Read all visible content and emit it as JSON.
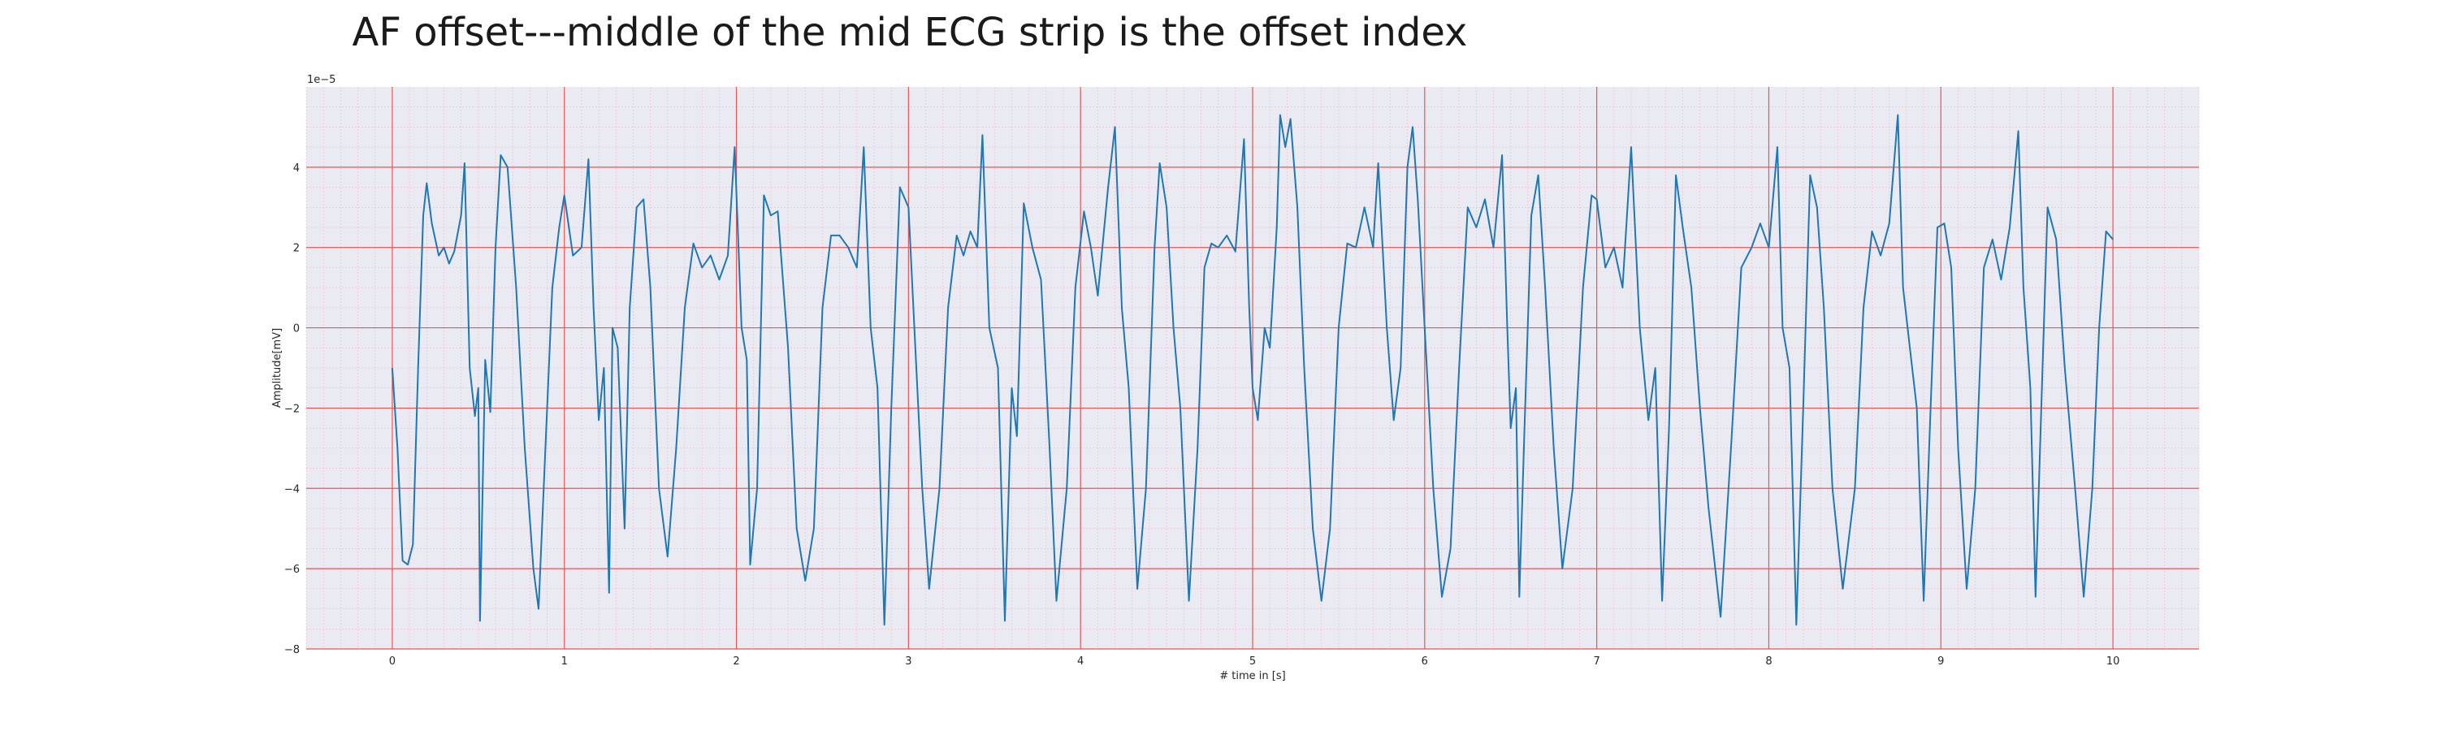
{
  "chart_data": {
    "type": "line",
    "title": "AF offset---middle of the mid ECG strip is the offset index",
    "xlabel": "# time in [s]",
    "ylabel": "Amplitude[mV]",
    "y_offset_text": "1e−5",
    "xlim": [
      -0.5,
      10.5
    ],
    "ylim": [
      -8.0,
      6.0
    ],
    "y_unit_scale": 1e-05,
    "x_ticks": [
      0,
      1,
      2,
      3,
      4,
      5,
      6,
      7,
      8,
      9,
      10
    ],
    "x_tick_labels": [
      "0",
      "1",
      "2",
      "3",
      "4",
      "5",
      "6",
      "7",
      "8",
      "9",
      "10"
    ],
    "y_ticks": [
      -8,
      -6,
      -4,
      -2,
      0,
      2,
      4
    ],
    "y_tick_labels": [
      "−8",
      "−6",
      "−4",
      "−2",
      "0",
      "2",
      "4"
    ],
    "grid": true,
    "minor_grid": true,
    "colors": {
      "plot_background": "#eaeaf2",
      "major_grid": "#ef5350",
      "minor_grid": "#f3b8c6",
      "line": "#1f77b4"
    },
    "series": [
      {
        "points": [
          [
            0.0,
            -1.0
          ],
          [
            0.03,
            -3.0
          ],
          [
            0.06,
            -5.8
          ],
          [
            0.09,
            -5.9
          ],
          [
            0.12,
            -5.4
          ],
          [
            0.15,
            -1.0
          ],
          [
            0.18,
            2.8
          ],
          [
            0.2,
            3.6
          ],
          [
            0.23,
            2.6
          ],
          [
            0.27,
            1.8
          ],
          [
            0.3,
            2.0
          ],
          [
            0.33,
            1.6
          ],
          [
            0.36,
            1.9
          ],
          [
            0.4,
            2.8
          ],
          [
            0.42,
            4.1
          ],
          [
            0.45,
            -1.0
          ],
          [
            0.48,
            -2.2
          ],
          [
            0.5,
            -1.5
          ],
          [
            0.51,
            -7.3
          ],
          [
            0.54,
            -0.8
          ],
          [
            0.57,
            -2.1
          ],
          [
            0.6,
            2.0
          ],
          [
            0.63,
            4.3
          ],
          [
            0.67,
            4.0
          ],
          [
            0.72,
            1.0
          ],
          [
            0.77,
            -3.0
          ],
          [
            0.82,
            -6.0
          ],
          [
            0.85,
            -7.0
          ],
          [
            0.89,
            -3.0
          ],
          [
            0.93,
            1.0
          ],
          [
            0.97,
            2.5
          ],
          [
            1.0,
            3.3
          ],
          [
            1.05,
            1.8
          ],
          [
            1.1,
            2.0
          ],
          [
            1.14,
            4.2
          ],
          [
            1.17,
            0.5
          ],
          [
            1.2,
            -2.3
          ],
          [
            1.23,
            -1.0
          ],
          [
            1.26,
            -6.6
          ],
          [
            1.28,
            0.0
          ],
          [
            1.31,
            -0.5
          ],
          [
            1.35,
            -5.0
          ],
          [
            1.38,
            0.5
          ],
          [
            1.42,
            3.0
          ],
          [
            1.46,
            3.2
          ],
          [
            1.5,
            1.0
          ],
          [
            1.55,
            -4.0
          ],
          [
            1.6,
            -5.7
          ],
          [
            1.65,
            -3.0
          ],
          [
            1.7,
            0.5
          ],
          [
            1.75,
            2.1
          ],
          [
            1.8,
            1.5
          ],
          [
            1.85,
            1.8
          ],
          [
            1.9,
            1.2
          ],
          [
            1.95,
            1.8
          ],
          [
            1.99,
            4.5
          ],
          [
            2.03,
            0.0
          ],
          [
            2.06,
            -0.8
          ],
          [
            2.08,
            -5.9
          ],
          [
            2.12,
            -4.0
          ],
          [
            2.16,
            3.3
          ],
          [
            2.2,
            2.8
          ],
          [
            2.24,
            2.9
          ],
          [
            2.3,
            -0.5
          ],
          [
            2.35,
            -5.0
          ],
          [
            2.4,
            -6.3
          ],
          [
            2.45,
            -5.0
          ],
          [
            2.5,
            0.5
          ],
          [
            2.55,
            2.3
          ],
          [
            2.6,
            2.3
          ],
          [
            2.65,
            2.0
          ],
          [
            2.7,
            1.5
          ],
          [
            2.74,
            4.5
          ],
          [
            2.78,
            0.0
          ],
          [
            2.82,
            -1.5
          ],
          [
            2.86,
            -7.4
          ],
          [
            2.9,
            -2.0
          ],
          [
            2.95,
            3.5
          ],
          [
            3.0,
            3.0
          ],
          [
            3.04,
            -0.5
          ],
          [
            3.08,
            -4.0
          ],
          [
            3.12,
            -6.5
          ],
          [
            3.18,
            -4.0
          ],
          [
            3.23,
            0.5
          ],
          [
            3.28,
            2.3
          ],
          [
            3.32,
            1.8
          ],
          [
            3.36,
            2.4
          ],
          [
            3.4,
            2.0
          ],
          [
            3.43,
            4.8
          ],
          [
            3.47,
            0.0
          ],
          [
            3.52,
            -1.0
          ],
          [
            3.56,
            -7.3
          ],
          [
            3.6,
            -1.5
          ],
          [
            3.63,
            -2.7
          ],
          [
            3.67,
            3.1
          ],
          [
            3.72,
            2.0
          ],
          [
            3.77,
            1.2
          ],
          [
            3.82,
            -3.0
          ],
          [
            3.86,
            -6.8
          ],
          [
            3.92,
            -4.0
          ],
          [
            3.97,
            1.0
          ],
          [
            4.02,
            2.9
          ],
          [
            4.06,
            2.0
          ],
          [
            4.1,
            0.8
          ],
          [
            4.16,
            3.5
          ],
          [
            4.2,
            5.0
          ],
          [
            4.24,
            0.5
          ],
          [
            4.28,
            -1.5
          ],
          [
            4.33,
            -6.5
          ],
          [
            4.38,
            -4.0
          ],
          [
            4.43,
            2.0
          ],
          [
            4.46,
            4.1
          ],
          [
            4.5,
            3.0
          ],
          [
            4.54,
            0.0
          ],
          [
            4.58,
            -2.0
          ],
          [
            4.63,
            -6.8
          ],
          [
            4.68,
            -3.0
          ],
          [
            4.72,
            1.5
          ],
          [
            4.76,
            2.1
          ],
          [
            4.8,
            2.0
          ],
          [
            4.85,
            2.3
          ],
          [
            4.9,
            1.9
          ],
          [
            4.95,
            4.7
          ],
          [
            4.98,
            0.5
          ],
          [
            5.0,
            -1.5
          ],
          [
            5.03,
            -2.3
          ],
          [
            5.07,
            0.0
          ],
          [
            5.1,
            -0.5
          ],
          [
            5.14,
            2.5
          ],
          [
            5.16,
            5.3
          ],
          [
            5.19,
            4.5
          ],
          [
            5.22,
            5.2
          ],
          [
            5.26,
            3.0
          ],
          [
            5.3,
            -1.0
          ],
          [
            5.35,
            -5.0
          ],
          [
            5.4,
            -6.8
          ],
          [
            5.45,
            -5.0
          ],
          [
            5.5,
            0.0
          ],
          [
            5.55,
            2.1
          ],
          [
            5.6,
            2.0
          ],
          [
            5.65,
            3.0
          ],
          [
            5.7,
            2.0
          ],
          [
            5.73,
            4.1
          ],
          [
            5.78,
            0.0
          ],
          [
            5.82,
            -2.3
          ],
          [
            5.86,
            -1.0
          ],
          [
            5.9,
            4.0
          ],
          [
            5.93,
            5.0
          ],
          [
            5.96,
            3.2
          ],
          [
            6.0,
            0.0
          ],
          [
            6.05,
            -4.0
          ],
          [
            6.1,
            -6.7
          ],
          [
            6.15,
            -5.5
          ],
          [
            6.2,
            -1.0
          ],
          [
            6.25,
            3.0
          ],
          [
            6.3,
            2.5
          ],
          [
            6.35,
            3.2
          ],
          [
            6.4,
            2.0
          ],
          [
            6.45,
            4.3
          ],
          [
            6.48,
            0.0
          ],
          [
            6.5,
            -2.5
          ],
          [
            6.53,
            -1.5
          ],
          [
            6.55,
            -6.7
          ],
          [
            6.58,
            -2.5
          ],
          [
            6.62,
            2.8
          ],
          [
            6.66,
            3.8
          ],
          [
            6.7,
            1.0
          ],
          [
            6.75,
            -3.0
          ],
          [
            6.8,
            -6.0
          ],
          [
            6.86,
            -4.0
          ],
          [
            6.92,
            1.0
          ],
          [
            6.97,
            3.3
          ],
          [
            7.0,
            3.2
          ],
          [
            7.05,
            1.5
          ],
          [
            7.1,
            2.0
          ],
          [
            7.15,
            1.0
          ],
          [
            7.2,
            4.5
          ],
          [
            7.25,
            0.0
          ],
          [
            7.3,
            -2.3
          ],
          [
            7.34,
            -1.0
          ],
          [
            7.38,
            -6.8
          ],
          [
            7.42,
            -2.5
          ],
          [
            7.46,
            3.8
          ],
          [
            7.5,
            2.5
          ],
          [
            7.55,
            1.0
          ],
          [
            7.6,
            -2.0
          ],
          [
            7.65,
            -4.5
          ],
          [
            7.72,
            -7.2
          ],
          [
            7.78,
            -3.0
          ],
          [
            7.84,
            1.5
          ],
          [
            7.9,
            2.0
          ],
          [
            7.95,
            2.6
          ],
          [
            8.0,
            2.0
          ],
          [
            8.05,
            4.5
          ],
          [
            8.08,
            0.0
          ],
          [
            8.12,
            -1.0
          ],
          [
            8.16,
            -7.4
          ],
          [
            8.2,
            -2.0
          ],
          [
            8.24,
            3.8
          ],
          [
            8.28,
            3.0
          ],
          [
            8.32,
            0.5
          ],
          [
            8.37,
            -4.0
          ],
          [
            8.43,
            -6.5
          ],
          [
            8.5,
            -4.0
          ],
          [
            8.55,
            0.5
          ],
          [
            8.6,
            2.4
          ],
          [
            8.65,
            1.8
          ],
          [
            8.7,
            2.6
          ],
          [
            8.75,
            5.3
          ],
          [
            8.78,
            1.0
          ],
          [
            8.82,
            -0.5
          ],
          [
            8.86,
            -2.0
          ],
          [
            8.9,
            -6.8
          ],
          [
            8.94,
            -2.0
          ],
          [
            8.98,
            2.5
          ],
          [
            9.02,
            2.6
          ],
          [
            9.06,
            1.5
          ],
          [
            9.1,
            -3.0
          ],
          [
            9.15,
            -6.5
          ],
          [
            9.2,
            -4.0
          ],
          [
            9.25,
            1.5
          ],
          [
            9.3,
            2.2
          ],
          [
            9.35,
            1.2
          ],
          [
            9.4,
            2.5
          ],
          [
            9.45,
            4.9
          ],
          [
            9.48,
            1.0
          ],
          [
            9.52,
            -1.5
          ],
          [
            9.55,
            -6.7
          ],
          [
            9.58,
            -2.5
          ],
          [
            9.62,
            3.0
          ],
          [
            9.67,
            2.2
          ],
          [
            9.72,
            -1.0
          ],
          [
            9.78,
            -4.0
          ],
          [
            9.83,
            -6.7
          ],
          [
            9.88,
            -4.0
          ],
          [
            9.92,
            0.0
          ],
          [
            9.96,
            2.4
          ],
          [
            10.0,
            2.2
          ]
        ]
      }
    ]
  }
}
